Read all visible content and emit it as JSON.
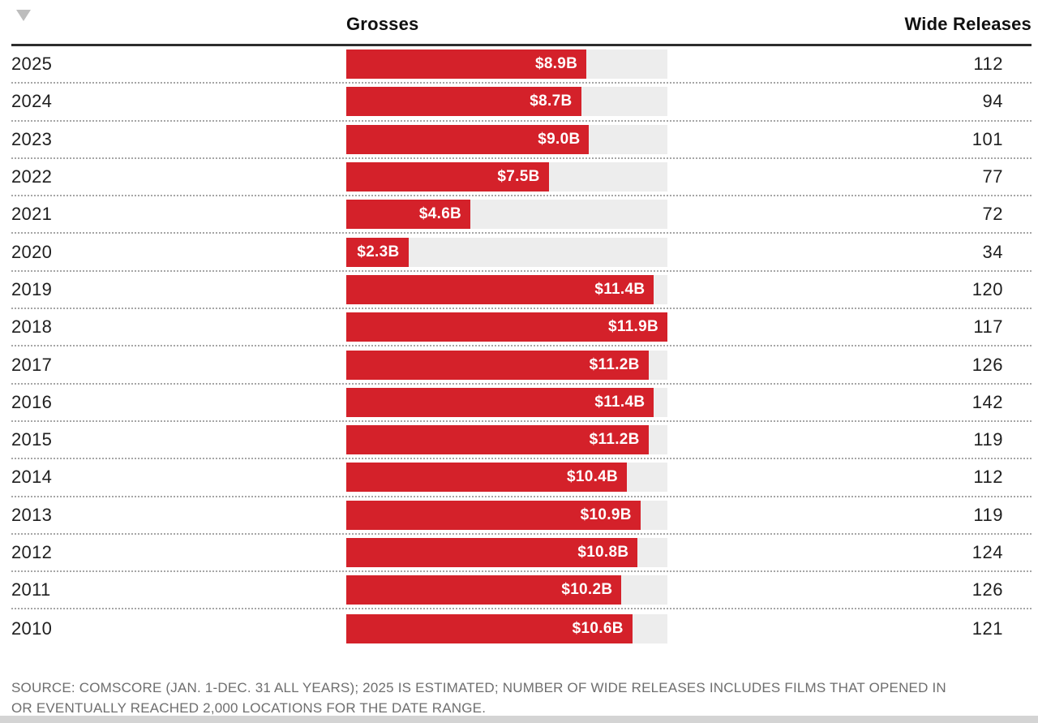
{
  "colors": {
    "bar_red": "#d4212a",
    "bar_track": "#ededed",
    "header_text": "#111111",
    "row_text": "#1f1f1f",
    "bar_label_text": "#ffffff",
    "footer_text": "#6e6e6e",
    "separator": "#a6a6a6",
    "top_border": "#2d2d2d",
    "sort_icon": "#bdbdbd",
    "bottom_strip": "#d4d4d4"
  },
  "header": {
    "grosses_label": "Grosses",
    "wide_releases_label": "Wide Releases"
  },
  "chart_data": {
    "type": "bar",
    "orientation": "horizontal",
    "columns": [
      "Year",
      "Grosses",
      "Wide Releases"
    ],
    "value_axis_max_billions": 11.9,
    "rows": [
      {
        "year": "2025",
        "gross_billions": 8.9,
        "gross_label": "$8.9B",
        "wide_releases": 112
      },
      {
        "year": "2024",
        "gross_billions": 8.7,
        "gross_label": "$8.7B",
        "wide_releases": 94
      },
      {
        "year": "2023",
        "gross_billions": 9.0,
        "gross_label": "$9.0B",
        "wide_releases": 101
      },
      {
        "year": "2022",
        "gross_billions": 7.5,
        "gross_label": "$7.5B",
        "wide_releases": 77
      },
      {
        "year": "2021",
        "gross_billions": 4.6,
        "gross_label": "$4.6B",
        "wide_releases": 72
      },
      {
        "year": "2020",
        "gross_billions": 2.3,
        "gross_label": "$2.3B",
        "wide_releases": 34
      },
      {
        "year": "2019",
        "gross_billions": 11.4,
        "gross_label": "$11.4B",
        "wide_releases": 120
      },
      {
        "year": "2018",
        "gross_billions": 11.9,
        "gross_label": "$11.9B",
        "wide_releases": 117
      },
      {
        "year": "2017",
        "gross_billions": 11.2,
        "gross_label": "$11.2B",
        "wide_releases": 126
      },
      {
        "year": "2016",
        "gross_billions": 11.4,
        "gross_label": "$11.4B",
        "wide_releases": 142
      },
      {
        "year": "2015",
        "gross_billions": 11.2,
        "gross_label": "$11.2B",
        "wide_releases": 119
      },
      {
        "year": "2014",
        "gross_billions": 10.4,
        "gross_label": "$10.4B",
        "wide_releases": 112
      },
      {
        "year": "2013",
        "gross_billions": 10.9,
        "gross_label": "$10.9B",
        "wide_releases": 119
      },
      {
        "year": "2012",
        "gross_billions": 10.8,
        "gross_label": "$10.8B",
        "wide_releases": 124
      },
      {
        "year": "2011",
        "gross_billions": 10.2,
        "gross_label": "$10.2B",
        "wide_releases": 126
      },
      {
        "year": "2010",
        "gross_billions": 10.6,
        "gross_label": "$10.6B",
        "wide_releases": 121
      }
    ]
  },
  "footer": {
    "source_text": "SOURCE: COMSCORE (JAN. 1-DEC. 31 ALL YEARS); 2025 IS ESTIMATED; NUMBER OF WIDE RELEASES INCLUDES FILMS THAT OPENED IN OR EVENTUALLY REACHED 2,000 LOCATIONS FOR THE DATE RANGE."
  }
}
